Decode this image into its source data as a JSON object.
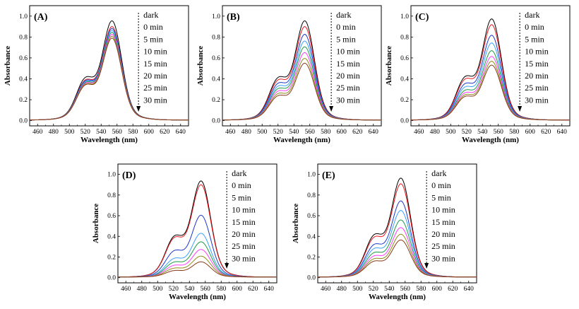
{
  "figure": {
    "legend_labels": [
      "dark",
      "0 min",
      "5 min",
      "10 min",
      "15 min",
      "20 min",
      "25 min",
      "30 min"
    ],
    "series_colors": [
      "#000000",
      "#e8191f",
      "#1f39c8",
      "#3aa0ff",
      "#1e9a46",
      "#ff3cff",
      "#8c8c1a",
      "#8b3a1a"
    ]
  },
  "chart_data": [
    {
      "type": "line",
      "panel_label": "(A)",
      "xlabel": "Wavelength (nm)",
      "ylabel": "Absorbance",
      "xlim": [
        450,
        650
      ],
      "ylim": [
        -0.05,
        1.1
      ],
      "xticks": [
        460,
        480,
        500,
        520,
        540,
        560,
        580,
        600,
        620,
        640
      ],
      "yticks": [
        0.0,
        0.2,
        0.4,
        0.6,
        0.8,
        1.0
      ],
      "peak_wavelength": 554,
      "series": [
        {
          "name": "dark",
          "peak": 1.03
        },
        {
          "name": "0 min",
          "peak": 0.97
        },
        {
          "name": "5 min",
          "peak": 0.95
        },
        {
          "name": "10 min",
          "peak": 0.93
        },
        {
          "name": "15 min",
          "peak": 0.91
        },
        {
          "name": "20 min",
          "peak": 0.89
        },
        {
          "name": "25 min",
          "peak": 0.87
        },
        {
          "name": "30 min",
          "peak": 0.85
        }
      ]
    },
    {
      "type": "line",
      "panel_label": "(B)",
      "xlabel": "Wavelength (nm)",
      "ylabel": "Absorbance",
      "xlim": [
        450,
        650
      ],
      "ylim": [
        -0.05,
        1.1
      ],
      "xticks": [
        460,
        480,
        500,
        520,
        540,
        560,
        580,
        600,
        620,
        640
      ],
      "yticks": [
        0.0,
        0.2,
        0.4,
        0.6,
        0.8,
        1.0
      ],
      "peak_wavelength": 554,
      "series": [
        {
          "name": "dark",
          "peak": 1.03
        },
        {
          "name": "0 min",
          "peak": 0.97
        },
        {
          "name": "5 min",
          "peak": 0.89
        },
        {
          "name": "10 min",
          "peak": 0.82
        },
        {
          "name": "15 min",
          "peak": 0.76
        },
        {
          "name": "20 min",
          "peak": 0.7
        },
        {
          "name": "25 min",
          "peak": 0.64
        },
        {
          "name": "30 min",
          "peak": 0.59
        }
      ]
    },
    {
      "type": "line",
      "panel_label": "(C)",
      "xlabel": "Wavelength (nm)",
      "ylabel": "Absorbance",
      "xlim": [
        450,
        650
      ],
      "ylim": [
        -0.05,
        1.1
      ],
      "xticks": [
        460,
        480,
        500,
        520,
        540,
        560,
        580,
        600,
        620,
        640
      ],
      "yticks": [
        0.0,
        0.2,
        0.4,
        0.6,
        0.8,
        1.0
      ],
      "peak_wavelength": 552,
      "series": [
        {
          "name": "dark",
          "peak": 1.05
        },
        {
          "name": "0 min",
          "peak": 0.99
        },
        {
          "name": "5 min",
          "peak": 0.88
        },
        {
          "name": "10 min",
          "peak": 0.8
        },
        {
          "name": "15 min",
          "peak": 0.72
        },
        {
          "name": "20 min",
          "peak": 0.66
        },
        {
          "name": "25 min",
          "peak": 0.61
        },
        {
          "name": "30 min",
          "peak": 0.57
        }
      ]
    },
    {
      "type": "line",
      "panel_label": "(D)",
      "xlabel": "Wavelength (nm)",
      "ylabel": "Absorbance",
      "xlim": [
        450,
        650
      ],
      "ylim": [
        -0.05,
        1.1
      ],
      "xticks": [
        460,
        480,
        500,
        520,
        540,
        560,
        580,
        600,
        620,
        640
      ],
      "yticks": [
        0.0,
        0.2,
        0.4,
        0.6,
        0.8,
        1.0
      ],
      "peak_wavelength": 555,
      "series": [
        {
          "name": "dark",
          "peak": 1.01
        },
        {
          "name": "0 min",
          "peak": 0.97
        },
        {
          "name": "5 min",
          "peak": 0.65
        },
        {
          "name": "10 min",
          "peak": 0.46
        },
        {
          "name": "15 min",
          "peak": 0.37
        },
        {
          "name": "20 min",
          "peak": 0.29
        },
        {
          "name": "25 min",
          "peak": 0.22
        },
        {
          "name": "30 min",
          "peak": 0.16
        }
      ]
    },
    {
      "type": "line",
      "panel_label": "(E)",
      "xlabel": "Wavelength (nm)",
      "ylabel": "Absorbance",
      "xlim": [
        450,
        650
      ],
      "ylim": [
        -0.05,
        1.1
      ],
      "xticks": [
        460,
        480,
        500,
        520,
        540,
        560,
        580,
        600,
        620,
        640
      ],
      "yticks": [
        0.0,
        0.2,
        0.4,
        0.6,
        0.8,
        1.0
      ],
      "peak_wavelength": 555,
      "series": [
        {
          "name": "dark",
          "peak": 1.04
        },
        {
          "name": "0 min",
          "peak": 0.98
        },
        {
          "name": "5 min",
          "peak": 0.8
        },
        {
          "name": "10 min",
          "peak": 0.7
        },
        {
          "name": "15 min",
          "peak": 0.6
        },
        {
          "name": "20 min",
          "peak": 0.52
        },
        {
          "name": "25 min",
          "peak": 0.45
        },
        {
          "name": "30 min",
          "peak": 0.39
        }
      ]
    }
  ]
}
